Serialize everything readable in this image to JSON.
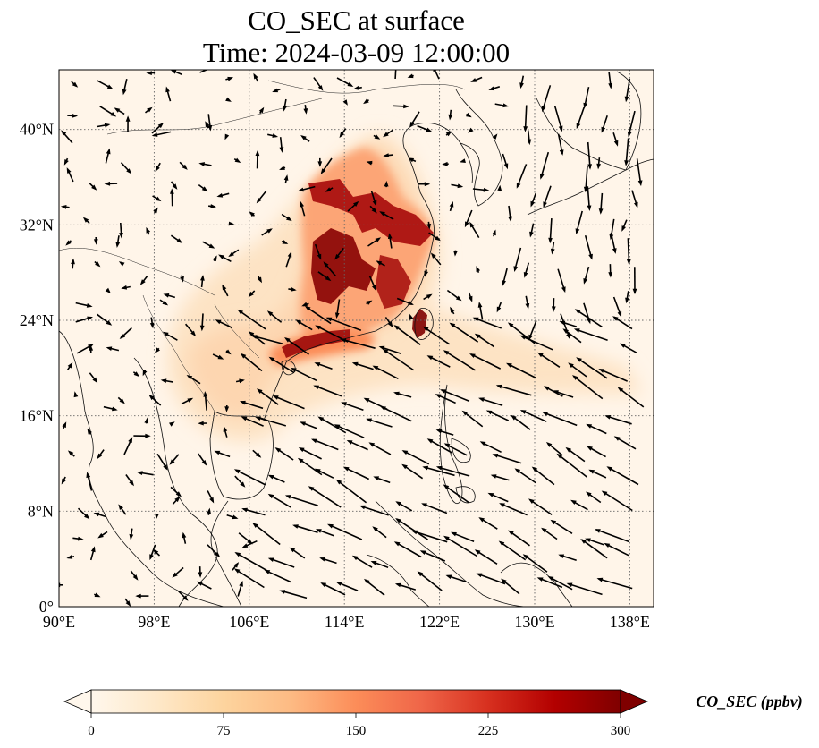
{
  "title": {
    "line1": "CO_SEC at surface",
    "line2": "Time: 2024-03-09 12:00:00"
  },
  "map": {
    "lon_range": [
      90,
      140
    ],
    "lat_range": [
      0,
      45
    ],
    "lon_ticks": [
      {
        "value": 90,
        "label": "90°E"
      },
      {
        "value": 98,
        "label": "98°E"
      },
      {
        "value": 106,
        "label": "106°E"
      },
      {
        "value": 114,
        "label": "114°E"
      },
      {
        "value": 122,
        "label": "122°E"
      },
      {
        "value": 130,
        "label": "130°E"
      },
      {
        "value": 138,
        "label": "138°E"
      }
    ],
    "lat_ticks": [
      {
        "value": 0,
        "label": "0°"
      },
      {
        "value": 8,
        "label": "8°N"
      },
      {
        "value": 16,
        "label": "16°N"
      },
      {
        "value": 24,
        "label": "24°N"
      },
      {
        "value": 32,
        "label": "32°N"
      },
      {
        "value": 40,
        "label": "40°N"
      }
    ],
    "gridlines": true,
    "colormap": "OrRd"
  },
  "colorbar": {
    "label": "CO_SEC (ppbv)",
    "ticks": [
      {
        "value": 0,
        "label": "0"
      },
      {
        "value": 75,
        "label": "75"
      },
      {
        "value": 150,
        "label": "150"
      },
      {
        "value": 225,
        "label": "225"
      },
      {
        "value": 300,
        "label": "300"
      }
    ],
    "range": [
      0,
      300
    ],
    "extend": "both",
    "colors": [
      "#fff7ec",
      "#fee8c8",
      "#fdd49e",
      "#fdbb84",
      "#fc8d59",
      "#ef6548",
      "#d7301f",
      "#b30000",
      "#7f0000"
    ]
  }
}
